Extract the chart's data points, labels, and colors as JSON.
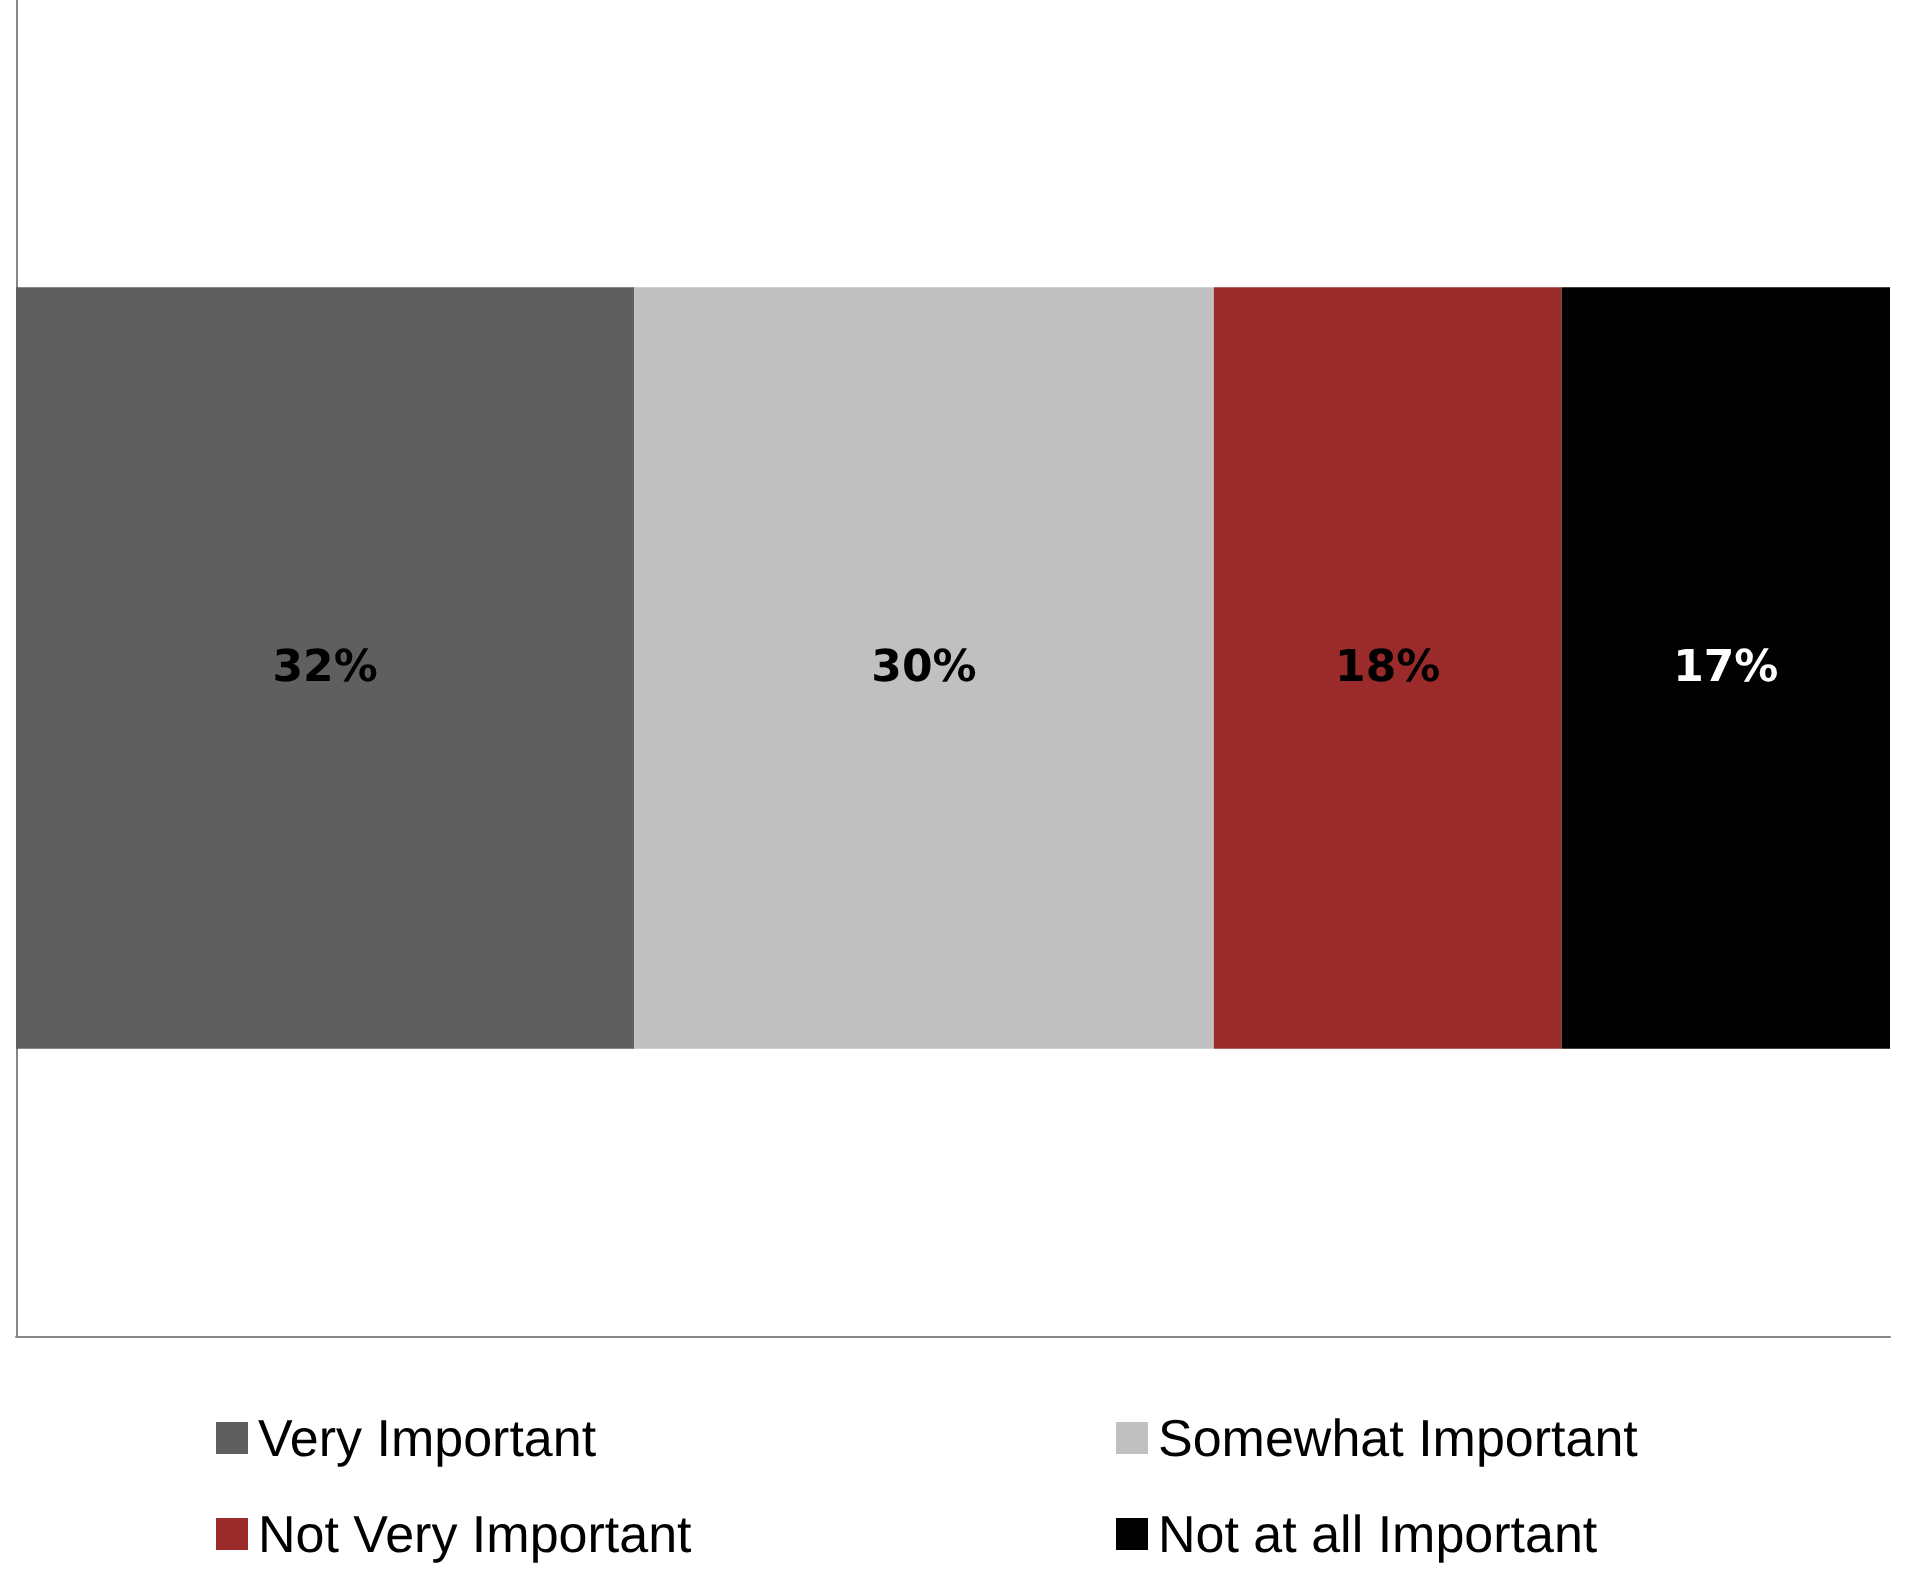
{
  "chart_data": {
    "type": "bar",
    "orientation": "horizontal",
    "stacked": true,
    "categories": [
      null
    ],
    "series": [
      {
        "name": "Very Important",
        "color": "#5f5f5f",
        "values": [
          32
        ],
        "value_labels": [
          "32%"
        ]
      },
      {
        "name": "Somewhat Important",
        "color": "#c0c0c0",
        "values": [
          30
        ],
        "value_labels": [
          "30%"
        ]
      },
      {
        "name": "Not Very Important",
        "color": "#9b2a2b",
        "values": [
          18
        ],
        "value_labels": [
          "18%"
        ]
      },
      {
        "name": "Not at all Important",
        "color": "#000000",
        "values": [
          17
        ],
        "value_labels": [
          "17%"
        ]
      }
    ],
    "legend": "bottom",
    "grid": false,
    "tick_labels": false
  }
}
